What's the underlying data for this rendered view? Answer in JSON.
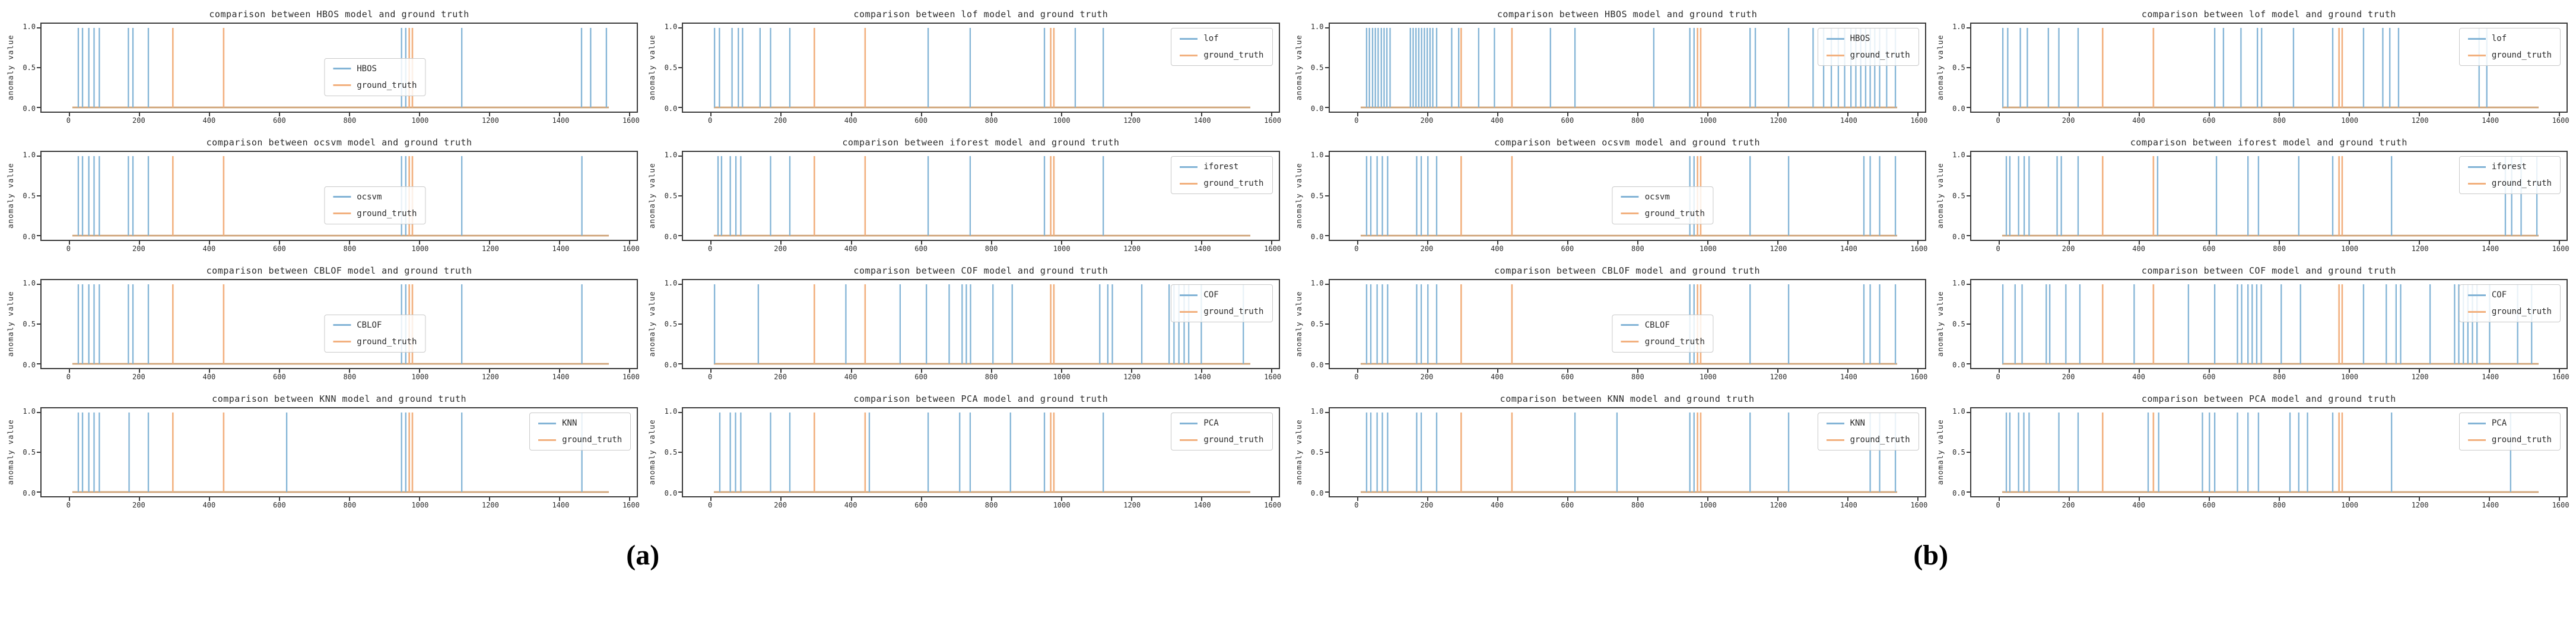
{
  "figure": {
    "subfigure_labels": [
      "(a)",
      "(b)"
    ],
    "colors": {
      "model": "#83b4d6",
      "ground_truth": "#f2b07e",
      "baseline": "#cfa377"
    },
    "axis": {
      "ylabel": "anomaly value",
      "yticks": [
        "1.0",
        "0.5",
        "0.0"
      ],
      "xticks": [
        0,
        200,
        400,
        600,
        800,
        1000,
        1200,
        1400,
        1600
      ],
      "xlim": [
        -80,
        1620
      ],
      "ylim": [
        0.0,
        1.0
      ],
      "data_x_range": [
        8,
        1540
      ]
    }
  },
  "chart_data": [
    {
      "panel": "a",
      "model": "HBOS",
      "type": "bar",
      "title": "comparison between HBOS model and ground truth",
      "legend": [
        "HBOS",
        "ground_truth"
      ],
      "legend_pos": "center",
      "model_events": [
        25,
        37,
        55,
        70,
        85,
        168,
        181,
        225,
        948,
        960,
        1120,
        1462,
        1488,
        1533
      ],
      "ground_truth_events": [
        295,
        440,
        970,
        979
      ],
      "event_value": 1.0
    },
    {
      "panel": "a",
      "model": "lof",
      "type": "bar",
      "title": "comparison between lof model and ground truth",
      "legend": [
        "lof",
        "ground_truth"
      ],
      "legend_pos": "upper_right",
      "model_events": [
        10,
        24,
        60,
        78,
        90,
        140,
        170,
        225,
        620,
        740,
        952,
        1040,
        1120
      ],
      "ground_truth_events": [
        295,
        440,
        970,
        979
      ],
      "event_value": 1.0
    },
    {
      "panel": "a",
      "model": "ocsvm",
      "type": "bar",
      "title": "comparison between ocsvm model and ground truth",
      "legend": [
        "ocsvm",
        "ground_truth"
      ],
      "legend_pos": "center",
      "model_events": [
        25,
        37,
        55,
        70,
        85,
        168,
        181,
        225,
        948,
        960,
        1120,
        1463
      ],
      "ground_truth_events": [
        295,
        440,
        970,
        979
      ],
      "event_value": 1.0
    },
    {
      "panel": "a",
      "model": "iforest",
      "type": "bar",
      "title": "comparison between iforest model and ground truth",
      "legend": [
        "iforest",
        "ground_truth"
      ],
      "legend_pos": "upper_right",
      "model_events": [
        20,
        30,
        55,
        71,
        85,
        170,
        225,
        620,
        740,
        952,
        1120
      ],
      "ground_truth_events": [
        295,
        440,
        970,
        979
      ],
      "event_value": 1.0
    },
    {
      "panel": "a",
      "model": "CBLOF",
      "type": "bar",
      "title": "comparison between CBLOF model and ground truth",
      "legend": [
        "CBLOF",
        "ground_truth"
      ],
      "legend_pos": "center",
      "model_events": [
        25,
        37,
        55,
        70,
        85,
        168,
        181,
        225,
        948,
        960,
        1120,
        1463
      ],
      "ground_truth_events": [
        295,
        440,
        970,
        979
      ],
      "event_value": 1.0
    },
    {
      "panel": "a",
      "model": "COF",
      "type": "bar",
      "title": "comparison between COF model and ground truth",
      "legend": [
        "COF",
        "ground_truth"
      ],
      "legend_pos": "upper_right",
      "model_events": [
        10,
        135,
        385,
        540,
        615,
        680,
        717,
        729,
        741,
        805,
        860,
        1110,
        1133,
        1146,
        1230,
        1308,
        1322,
        1336,
        1351,
        1364,
        1400,
        1520
      ],
      "ground_truth_events": [
        295,
        440,
        970,
        979
      ],
      "event_value": 1.0
    },
    {
      "panel": "a",
      "model": "KNN",
      "type": "bar",
      "title": "comparison between KNN model and ground truth",
      "legend": [
        "KNN",
        "ground_truth"
      ],
      "legend_pos": "upper_right",
      "model_events": [
        25,
        37,
        55,
        70,
        85,
        170,
        225,
        620,
        948,
        960,
        1120,
        1463
      ],
      "ground_truth_events": [
        295,
        440,
        970,
        979
      ],
      "event_value": 1.0
    },
    {
      "panel": "a",
      "model": "PCA",
      "type": "bar",
      "title": "comparison between PCA model and ground truth",
      "legend": [
        "PCA",
        "ground_truth"
      ],
      "legend_pos": "upper_right",
      "model_events": [
        25,
        55,
        70,
        85,
        170,
        225,
        452,
        620,
        710,
        740,
        855,
        952,
        1120
      ],
      "ground_truth_events": [
        295,
        440,
        970,
        979
      ],
      "event_value": 1.0
    },
    {
      "panel": "b",
      "model": "HBOS",
      "type": "bar",
      "title": "comparison between HBOS model and ground truth",
      "legend": [
        "HBOS",
        "ground_truth"
      ],
      "legend_pos": "upper_right",
      "model_events": [
        25,
        33,
        42,
        50,
        58,
        67,
        75,
        83,
        92,
        150,
        158,
        166,
        174,
        182,
        190,
        198,
        206,
        214,
        225,
        268,
        288,
        345,
        390,
        550,
        620,
        845,
        948,
        960,
        1120,
        1135,
        1230,
        1300,
        1330,
        1352,
        1372,
        1390,
        1408,
        1422,
        1436,
        1450,
        1463,
        1476,
        1490,
        1510,
        1535
      ],
      "ground_truth_events": [
        295,
        440,
        970,
        979
      ],
      "event_value": 1.0
    },
    {
      "panel": "b",
      "model": "lof",
      "type": "bar",
      "title": "comparison between lof model and ground truth",
      "legend": [
        "lof",
        "ground_truth"
      ],
      "legend_pos": "upper_right",
      "model_events": [
        10,
        24,
        60,
        80,
        140,
        170,
        225,
        615,
        640,
        690,
        737,
        749,
        840,
        952,
        1040,
        1095,
        1115,
        1140,
        1370,
        1392
      ],
      "ground_truth_events": [
        295,
        440,
        970,
        979
      ],
      "event_value": 1.0
    },
    {
      "panel": "b",
      "model": "ocsvm",
      "type": "bar",
      "title": "comparison between ocsvm model and ground truth",
      "legend": [
        "ocsvm",
        "ground_truth"
      ],
      "legend_pos": "center",
      "model_events": [
        25,
        37,
        55,
        70,
        85,
        168,
        181,
        200,
        225,
        948,
        960,
        1120,
        1230,
        1445,
        1463,
        1490,
        1535
      ],
      "ground_truth_events": [
        295,
        440,
        970,
        979
      ],
      "event_value": 1.0
    },
    {
      "panel": "b",
      "model": "iforest",
      "type": "bar",
      "title": "comparison between iforest model and ground truth",
      "legend": [
        "iforest",
        "ground_truth"
      ],
      "legend_pos": "upper_right",
      "model_events": [
        20,
        30,
        55,
        71,
        85,
        165,
        177,
        225,
        452,
        620,
        710,
        740,
        855,
        952,
        1120,
        1445,
        1463,
        1490,
        1535
      ],
      "ground_truth_events": [
        295,
        440,
        970,
        979
      ],
      "event_value": 1.0
    },
    {
      "panel": "b",
      "model": "CBLOF",
      "type": "bar",
      "title": "comparison between CBLOF model and ground truth",
      "legend": [
        "CBLOF",
        "ground_truth"
      ],
      "legend_pos": "center",
      "model_events": [
        25,
        37,
        55,
        70,
        85,
        168,
        181,
        200,
        225,
        948,
        960,
        1120,
        1230,
        1445,
        1463,
        1490,
        1535
      ],
      "ground_truth_events": [
        295,
        440,
        970,
        979
      ],
      "event_value": 1.0
    },
    {
      "panel": "b",
      "model": "COF",
      "type": "bar",
      "title": "comparison between COF model and ground truth",
      "legend": [
        "COF",
        "ground_truth"
      ],
      "legend_pos": "upper_right",
      "model_events": [
        10,
        45,
        65,
        134,
        144,
        190,
        230,
        385,
        540,
        615,
        680,
        692,
        710,
        722,
        735,
        748,
        805,
        860,
        1040,
        1105,
        1133,
        1146,
        1230,
        1300,
        1312,
        1325,
        1338,
        1351,
        1364,
        1400,
        1480,
        1520
      ],
      "ground_truth_events": [
        295,
        440,
        970,
        979
      ],
      "event_value": 1.0
    },
    {
      "panel": "b",
      "model": "KNN",
      "type": "bar",
      "title": "comparison between KNN model and ground truth",
      "legend": [
        "KNN",
        "ground_truth"
      ],
      "legend_pos": "upper_right",
      "model_events": [
        25,
        37,
        55,
        70,
        85,
        168,
        181,
        225,
        620,
        740,
        948,
        960,
        1120,
        1230,
        1463,
        1490,
        1535
      ],
      "ground_truth_events": [
        295,
        440,
        970,
        979
      ],
      "event_value": 1.0
    },
    {
      "panel": "b",
      "model": "PCA",
      "type": "bar",
      "title": "comparison between PCA model and ground truth",
      "legend": [
        "PCA",
        "ground_truth"
      ],
      "legend_pos": "upper_right",
      "model_events": [
        20,
        30,
        55,
        70,
        85,
        170,
        225,
        425,
        455,
        580,
        600,
        615,
        680,
        710,
        740,
        830,
        855,
        880,
        952,
        1120,
        1460
      ],
      "ground_truth_events": [
        295,
        440,
        970,
        979
      ],
      "event_value": 1.0
    }
  ]
}
